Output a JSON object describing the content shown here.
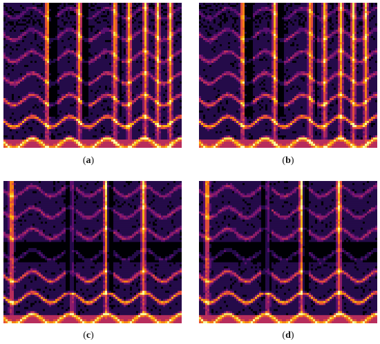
{
  "figure": {
    "panels": [
      {
        "id": "a",
        "label": "a",
        "variant": "speech_top"
      },
      {
        "id": "b",
        "label": "b",
        "variant": "speech_top"
      },
      {
        "id": "c",
        "label": "c",
        "variant": "speech_bottom"
      },
      {
        "id": "d",
        "label": "d",
        "variant": "speech_bottom"
      }
    ],
    "colormap": [
      "#000004",
      "#240b49",
      "#5a0f6e",
      "#8a1b6a",
      "#b72d5c",
      "#e04e3b",
      "#f57e14",
      "#fcb314",
      "#f7e45c",
      "#fcffa4"
    ]
  }
}
